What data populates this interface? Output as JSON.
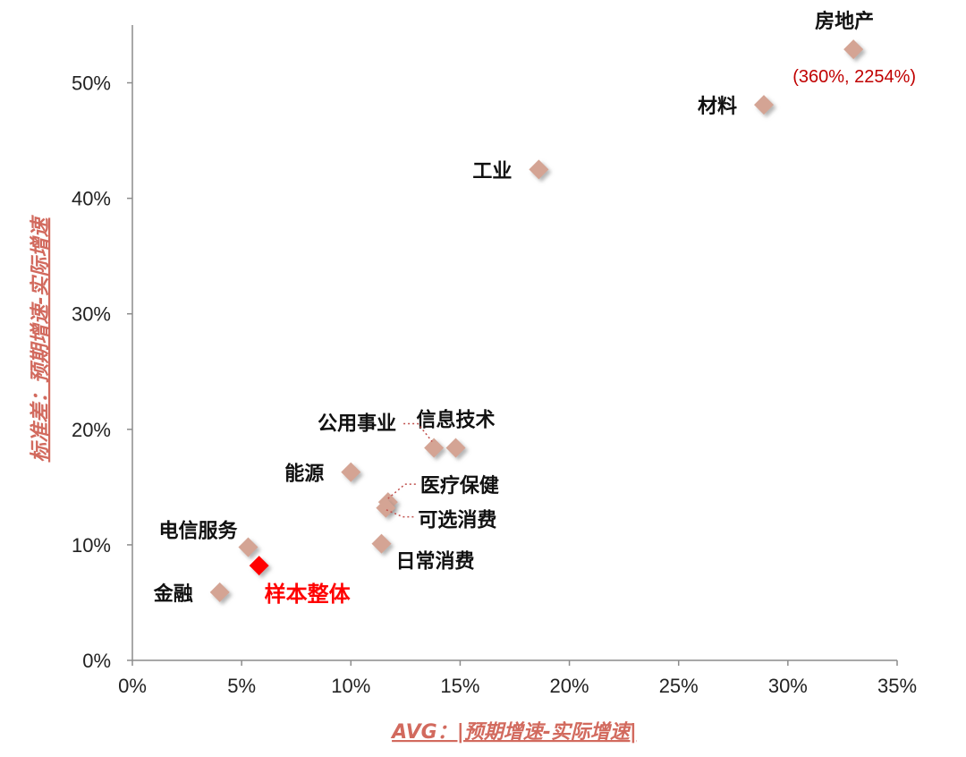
{
  "chart_data": {
    "type": "scatter",
    "xlabel": "AVG：|预期增速-实际增速|",
    "ylabel": "标准差：预期增速-实际增速",
    "xlim": [
      0,
      35
    ],
    "ylim": [
      0,
      55
    ],
    "x_ticks": [
      "0%",
      "5%",
      "10%",
      "15%",
      "20%",
      "25%",
      "30%",
      "35%"
    ],
    "y_ticks": [
      "0%",
      "10%",
      "20%",
      "30%",
      "40%",
      "50%"
    ],
    "grid": false,
    "marker_color": "#d4a494",
    "highlight_color": "#ff0000",
    "points": [
      {
        "label": "房地产",
        "x": 33.0,
        "y": 52.9
      },
      {
        "label": "材料",
        "x": 28.9,
        "y": 48.1
      },
      {
        "label": "工业",
        "x": 18.6,
        "y": 42.5
      },
      {
        "label": "信息技术",
        "x": 14.8,
        "y": 18.4
      },
      {
        "label": "公用事业",
        "x": 13.8,
        "y": 18.4
      },
      {
        "label": "能源",
        "x": 10.0,
        "y": 16.3
      },
      {
        "label": "医疗保健",
        "x": 11.7,
        "y": 13.7
      },
      {
        "label": "可选消费",
        "x": 11.6,
        "y": 13.2
      },
      {
        "label": "日常消费",
        "x": 11.4,
        "y": 10.1
      },
      {
        "label": "电信服务",
        "x": 5.3,
        "y": 9.8
      },
      {
        "label": "样本整体",
        "x": 5.8,
        "y": 8.2,
        "highlight": true
      },
      {
        "label": "金融",
        "x": 4.0,
        "y": 5.9
      }
    ],
    "annotations": [
      {
        "text": "(360%, 2254%)",
        "near": "房地产"
      }
    ]
  }
}
